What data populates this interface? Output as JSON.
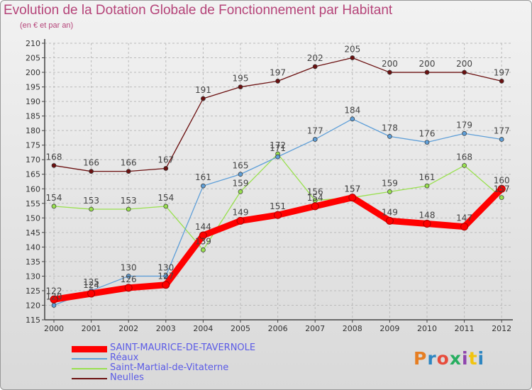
{
  "header": {
    "title": "Evolution de la Dotation Globale de Fonctionnement par Habitant",
    "subtitle": "(en € et par an)"
  },
  "logo": {
    "text": "Proxiti",
    "colors": [
      "#e67e22",
      "#2e86c1",
      "#e74c3c",
      "#27ae60",
      "#8e44ad",
      "#f1c40f",
      "#2e86c1"
    ]
  },
  "colors": {
    "saint_maurice": "#ff0000",
    "reaux": "#5f9fd8",
    "saint_martial": "#99e04f",
    "neulles": "#6b1010",
    "axis": "#444444",
    "grid": "#bbbbbb",
    "legend_text": "#5b5be6",
    "title_text": "#b54479"
  },
  "chart_data": {
    "type": "line",
    "title": "Evolution de la Dotation Globale de Fonctionnement par Habitant",
    "subtitle": "(en € et par an)",
    "xlabel": "",
    "ylabel": "",
    "ylim": [
      115,
      210
    ],
    "ytick_step": 5,
    "grid": true,
    "legend_position": "bottom-left",
    "categories": [
      "2000",
      "2001",
      "2002",
      "2003",
      "2004",
      "2005",
      "2006",
      "2007",
      "2008",
      "2009",
      "2010",
      "2011",
      "2012"
    ],
    "series": [
      {
        "name": "SAINT-MAURICE-DE-TAVERNOLE",
        "color": "#ff0000",
        "values": [
          122,
          124,
          126,
          127,
          144,
          149,
          151,
          154,
          157,
          149,
          148,
          147,
          160
        ]
      },
      {
        "name": "Réaux",
        "color": "#5f9fd8",
        "values": [
          120,
          125,
          130,
          130,
          161,
          165,
          171,
          177,
          184,
          178,
          176,
          179,
          177
        ]
      },
      {
        "name": "Saint-Martial-de-Vitaterne",
        "color": "#99e04f",
        "values": [
          154,
          153,
          153,
          154,
          139,
          159,
          172,
          156,
          157,
          159,
          161,
          168,
          157
        ]
      },
      {
        "name": "Neulles",
        "color": "#6b1010",
        "values": [
          168,
          166,
          166,
          167,
          191,
          195,
          197,
          202,
          205,
          200,
          200,
          200,
          197
        ]
      }
    ]
  }
}
